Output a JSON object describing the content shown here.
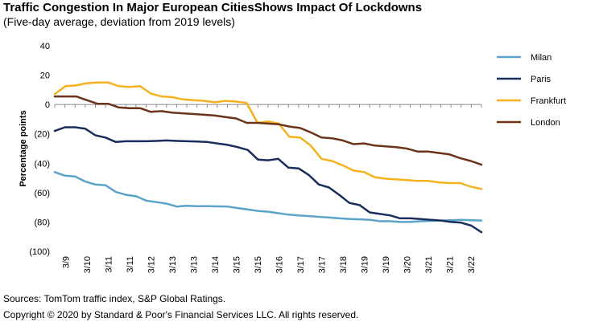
{
  "header": {
    "title": "Traffic Congestion In Major European CitiesShows Impact Of Lockdowns",
    "subtitle": "(Five-day average, deviation from 2019 levels)"
  },
  "footer": {
    "sources": "Sources: TomTom traffic index, S&P Global Ratings.",
    "copyright": "Copyright © 2020 by Standard & Poor's Financial Services LLC. All rights reserved."
  },
  "chart_data": {
    "type": "line",
    "ylabel": "Percentage points",
    "xlabel": "",
    "ylim": [
      -100,
      40
    ],
    "yticks": [
      40,
      20,
      0,
      -20,
      -40,
      -60,
      -80,
      -100
    ],
    "ytick_labels": [
      "40",
      "20",
      "0",
      "(20)",
      "(40)",
      "(60)",
      "(80)",
      "(100)"
    ],
    "x_tick_labels": [
      "3/9",
      "3/10",
      "3/11",
      "3/11",
      "3/12",
      "3/13",
      "3/13",
      "3/14",
      "3/15",
      "3/15",
      "3/16",
      "3/17",
      "3/17",
      "3/18",
      "3/19",
      "3/19",
      "3/20",
      "3/21",
      "3/21",
      "3/22"
    ],
    "legend_position": "right",
    "grid": false,
    "series": [
      {
        "name": "Milan",
        "color": "#5BA3C9",
        "values": [
          -46,
          -48.5,
          -49,
          -52.5,
          -54.5,
          -55,
          -59.5,
          -61.5,
          -62.5,
          -65.5,
          -66.5,
          -67.5,
          -69.5,
          -69,
          -69.3,
          -69.2,
          -69.4,
          -69.5,
          -70.5,
          -71.5,
          -72.5,
          -73,
          -74,
          -75,
          -75.5,
          -76,
          -76.5,
          -77,
          -77.5,
          -78,
          -78.2,
          -78.5,
          -79.5,
          -79.5,
          -80,
          -80,
          -79.5,
          -79.3,
          -79,
          -78.8,
          -78.5,
          -78.8,
          -79
        ]
      },
      {
        "name": "Paris",
        "color": "#1B2D5C",
        "values": [
          -18,
          -15.5,
          -15.5,
          -16.5,
          -21,
          -22.5,
          -25.5,
          -25,
          -25,
          -25,
          -24.8,
          -24.5,
          -24.8,
          -25,
          -25.2,
          -25.5,
          -26.5,
          -27.5,
          -29,
          -31,
          -37.5,
          -38,
          -37,
          -43,
          -43.5,
          -48,
          -54.5,
          -56.5,
          -61.5,
          -67,
          -68.5,
          -73.5,
          -74.5,
          -75.5,
          -77.5,
          -77.5,
          -78,
          -78.5,
          -79,
          -80,
          -80.5,
          -82.5,
          -87
        ]
      },
      {
        "name": "Frankfurt",
        "color": "#F5B21E",
        "values": [
          7,
          12.5,
          13,
          14.5,
          15,
          15,
          12.5,
          12,
          12.5,
          7.5,
          5.5,
          5,
          3.5,
          3,
          2.5,
          1.5,
          2.5,
          2,
          1,
          -12.5,
          -11.5,
          -13,
          -22,
          -22.5,
          -28,
          -37,
          -38.5,
          -41.5,
          -45,
          -46,
          -49.5,
          -50.5,
          -51,
          -51.5,
          -52,
          -52,
          -53,
          -53.5,
          -53.5,
          -56,
          -57.5
        ]
      },
      {
        "name": "London",
        "color": "#6B3318",
        "values": [
          5.5,
          5.5,
          5.5,
          3,
          0.5,
          0.5,
          -2,
          -2.5,
          -2.5,
          -5,
          -4.5,
          -5.5,
          -6,
          -6.5,
          -7,
          -7.5,
          -8.5,
          -9.5,
          -12.5,
          -12.5,
          -13,
          -13.5,
          -15,
          -16,
          -19,
          -22.5,
          -23,
          -24.5,
          -27,
          -26.5,
          -28,
          -28.5,
          -29,
          -30,
          -32,
          -32,
          -33,
          -34,
          -36.5,
          -38.5,
          -41
        ]
      }
    ]
  }
}
